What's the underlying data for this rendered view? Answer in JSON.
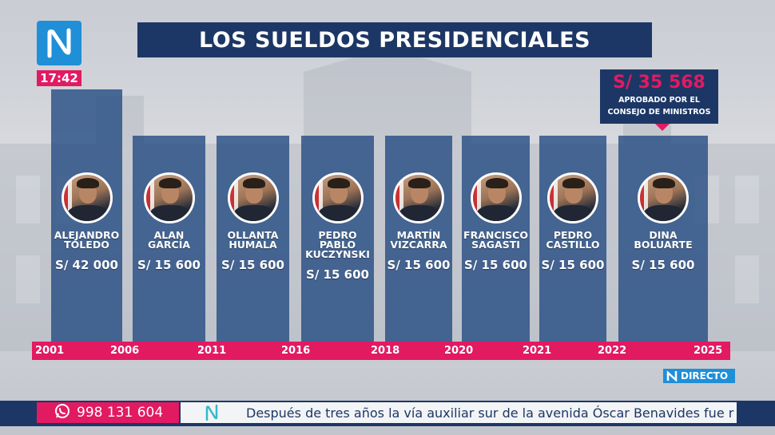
{
  "header": {
    "title": "LOS SUELDOS PRESIDENCIALES",
    "time": "17:42"
  },
  "presidents": [
    {
      "name": "ALEJANDRO\nTOLEDO",
      "salary": "S/ 42 000"
    },
    {
      "name": "ALAN\nGARCÍA",
      "salary": "S/ 15 600"
    },
    {
      "name": "OLLANTA\nHUMALA",
      "salary": "S/ 15 600"
    },
    {
      "name": "PEDRO\nPABLO\nKUCZYNSKI",
      "salary": "S/ 15 600"
    },
    {
      "name": "MARTÍN\nVIZCARRA",
      "salary": "S/ 15 600"
    },
    {
      "name": "FRANCISCO\nSAGASTI",
      "salary": "S/ 15 600"
    },
    {
      "name": "PEDRO\nCASTILLO",
      "salary": "S/ 15 600"
    },
    {
      "name": "DINA\nBOLUARTE",
      "salary": "S/ 15 600"
    }
  ],
  "years": [
    "2001",
    "2006",
    "2011",
    "2016",
    "2018",
    "2020",
    "2021",
    "2022",
    "2025"
  ],
  "callout": {
    "amount": "S/ 35 568",
    "note": "APROBADO POR EL\nCONSEJO DE MINISTROS"
  },
  "live_label": "DIRECTO",
  "footer": {
    "phone": "998 131 604",
    "ticker": "Después de tres años la vía auxiliar sur de la avenida Óscar Benavides fue r"
  },
  "colors": {
    "navy": "#1c3765",
    "pink": "#e21a62",
    "brand_blue": "#1f8fd8"
  },
  "icons": {
    "logo": "n-logo-icon",
    "phone": "whatsapp-icon"
  }
}
